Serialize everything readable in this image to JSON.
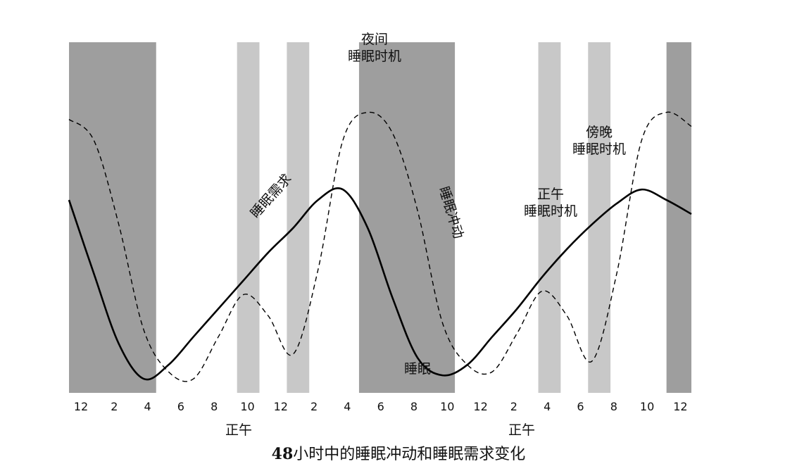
{
  "chart_data": {
    "type": "line",
    "title": "48小时中的睡眠冲动和睡眠需求变化",
    "x_tick_labels": [
      "12",
      "2",
      "4",
      "6",
      "8",
      "10",
      "12",
      "2",
      "4",
      "6",
      "8",
      "10",
      "12",
      "2",
      "4",
      "6",
      "8",
      "10",
      "12"
    ],
    "x_hours": [
      0,
      2,
      4,
      6,
      8,
      10,
      12,
      14,
      16,
      18,
      20,
      22,
      24,
      26,
      28,
      30,
      32,
      34,
      36,
      38,
      40,
      42,
      44,
      46,
      48,
      50
    ],
    "series": [
      {
        "name": "睡眠需求",
        "style": "solid",
        "values": [
          55,
          34,
          14,
          4,
          8,
          16,
          24,
          32,
          40,
          47,
          55,
          58,
          47,
          27,
          10,
          5,
          8,
          16,
          24,
          33,
          41,
          48,
          54,
          58,
          55,
          51
        ]
      },
      {
        "name": "睡眠冲动",
        "style": "dashed",
        "values": [
          78,
          72,
          48,
          18,
          6,
          4,
          16,
          28,
          22,
          11,
          35,
          72,
          80,
          74,
          52,
          20,
          8,
          6,
          17,
          29,
          22,
          9,
          34,
          72,
          80,
          76
        ]
      }
    ],
    "shaded_regions": [
      {
        "kind": "sleep",
        "x_start": 0,
        "x_end": 7
      },
      {
        "kind": "nap",
        "x_start": 13.5,
        "x_end": 15.3
      },
      {
        "kind": "nap",
        "x_start": 17.5,
        "x_end": 19.3
      },
      {
        "kind": "sleep",
        "x_start": 23.3,
        "x_end": 31
      },
      {
        "kind": "nap",
        "x_start": 37.7,
        "x_end": 39.5
      },
      {
        "kind": "nap",
        "x_start": 41.7,
        "x_end": 43.5
      },
      {
        "kind": "sleep",
        "x_start": 48,
        "x_end": 50
      }
    ],
    "annotations": {
      "night": [
        "夜间",
        "睡眠时机"
      ],
      "noon_window": [
        "正午",
        "睡眠时机"
      ],
      "evening": [
        "傍晚",
        "睡眠时机"
      ],
      "sleep": "睡眠",
      "need": "睡眠需求",
      "drive": "睡眠冲动"
    },
    "noon_labels": [
      "正午",
      "正午"
    ],
    "caption_number": "48",
    "caption_text": "小时中的睡眠冲动和睡眠需求变化",
    "colors": {
      "sleep": "#9e9e9e",
      "nap": "#c8c8c8",
      "curve": "#000000"
    }
  }
}
